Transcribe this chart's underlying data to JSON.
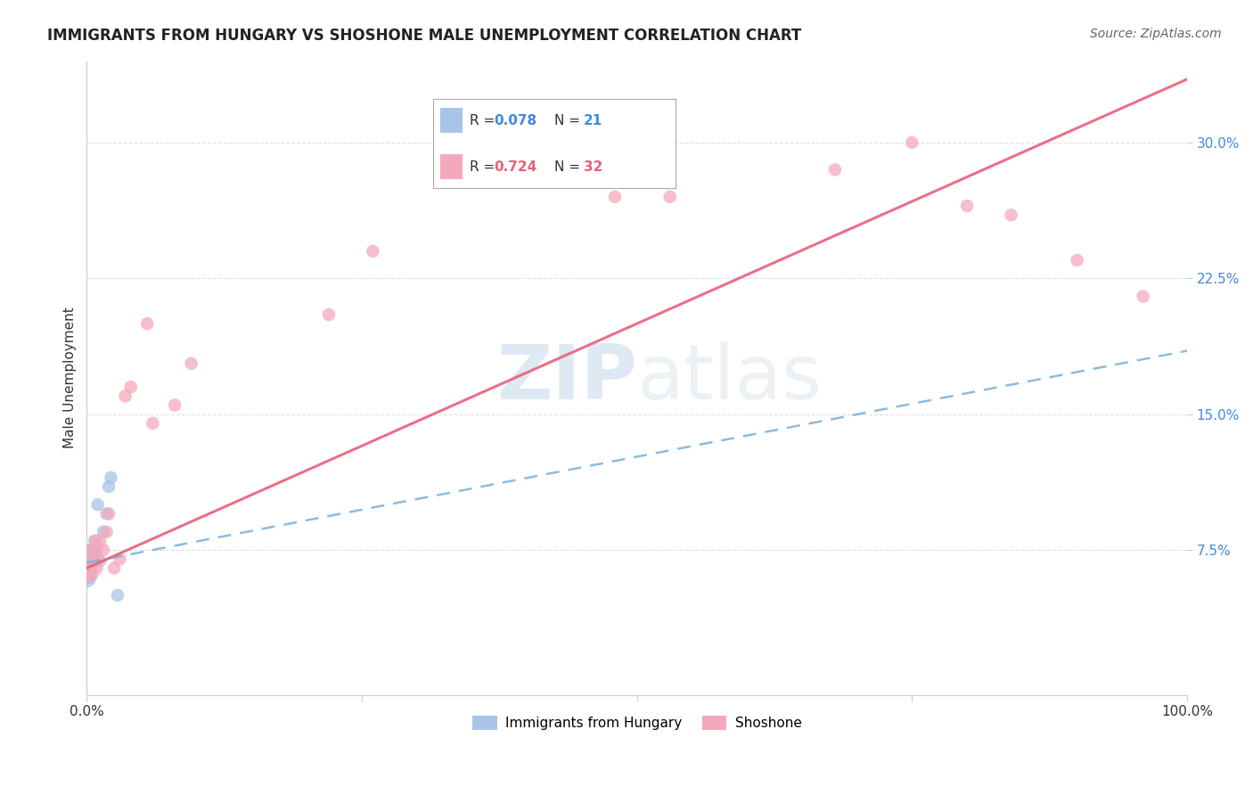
{
  "title": "IMMIGRANTS FROM HUNGARY VS SHOSHONE MALE UNEMPLOYMENT CORRELATION CHART",
  "source": "Source: ZipAtlas.com",
  "ylabel": "Male Unemployment",
  "xlim": [
    0.0,
    1.0
  ],
  "ylim": [
    -0.005,
    0.345
  ],
  "bg_color": "#ffffff",
  "grid_color": "#dddddd",
  "watermark_zip": "ZIP",
  "watermark_atlas": "atlas",
  "series1_color": "#a8c4e8",
  "series2_color": "#f5a8bc",
  "line1_color": "#7ab0d8",
  "line2_color": "#e8607a",
  "line1_style": "--",
  "line2_style": "-",
  "ytick_color": "#4488dd",
  "xtick_color": "#333333",
  "title_fontsize": 12,
  "ylabel_fontsize": 11,
  "tick_fontsize": 11,
  "source_fontsize": 10,
  "legend_r1_val": "0.078",
  "legend_n1_val": "21",
  "legend_r2_val": "0.724",
  "legend_n2_val": "32",
  "hungary_x": [
    0.0005,
    0.001,
    0.0015,
    0.002,
    0.0025,
    0.003,
    0.0035,
    0.004,
    0.0045,
    0.005,
    0.006,
    0.007,
    0.008,
    0.009,
    0.01,
    0.012,
    0.015,
    0.018,
    0.02,
    0.022,
    0.028
  ],
  "hungary_y": [
    0.063,
    0.06,
    0.058,
    0.067,
    0.065,
    0.062,
    0.06,
    0.07,
    0.068,
    0.075,
    0.072,
    0.08,
    0.073,
    0.076,
    0.1,
    0.069,
    0.085,
    0.095,
    0.11,
    0.115,
    0.05
  ],
  "shoshone_x": [
    0.001,
    0.002,
    0.003,
    0.004,
    0.005,
    0.006,
    0.007,
    0.008,
    0.009,
    0.01,
    0.012,
    0.015,
    0.018,
    0.02,
    0.025,
    0.03,
    0.035,
    0.04,
    0.055,
    0.06,
    0.08,
    0.095,
    0.22,
    0.26,
    0.48,
    0.53,
    0.68,
    0.75,
    0.8,
    0.84,
    0.9,
    0.96
  ],
  "shoshone_y": [
    0.063,
    0.06,
    0.075,
    0.065,
    0.062,
    0.07,
    0.075,
    0.08,
    0.065,
    0.07,
    0.08,
    0.075,
    0.085,
    0.095,
    0.065,
    0.07,
    0.16,
    0.165,
    0.2,
    0.145,
    0.155,
    0.178,
    0.205,
    0.24,
    0.27,
    0.27,
    0.285,
    0.3,
    0.265,
    0.26,
    0.235,
    0.215
  ],
  "line1_x0": 0.0,
  "line1_y0": 0.068,
  "line1_x1": 1.0,
  "line1_y1": 0.185,
  "line2_x0": 0.0,
  "line2_y0": 0.065,
  "line2_x1": 1.0,
  "line2_y1": 0.335
}
